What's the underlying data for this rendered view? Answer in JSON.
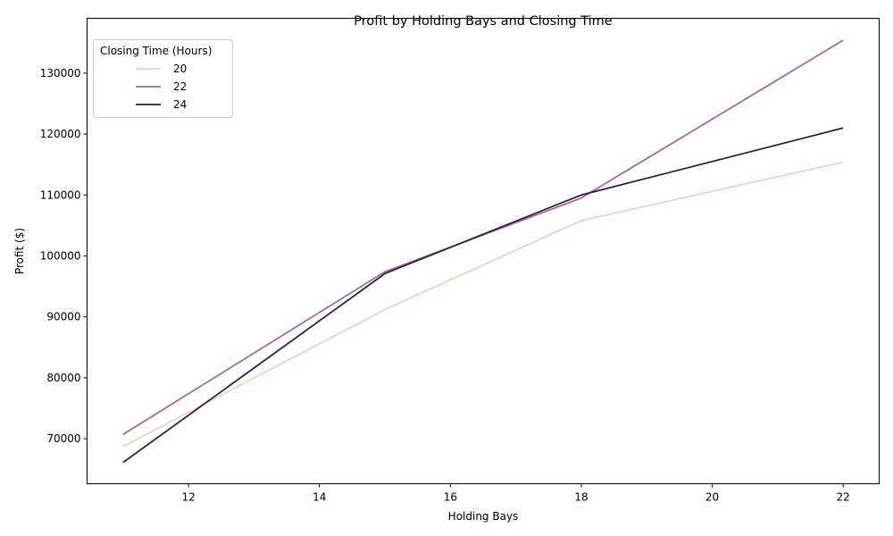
{
  "chart_data": {
    "type": "line",
    "title": "Profit by Holding Bays and Closing Time",
    "xlabel": "Holding Bays",
    "ylabel": "Profit ($)",
    "xlim": [
      10.45,
      22.55
    ],
    "ylim": [
      62600,
      139000
    ],
    "xticks": [
      12,
      14,
      16,
      18,
      20,
      22
    ],
    "yticks": [
      70000,
      80000,
      90000,
      100000,
      110000,
      120000,
      130000
    ],
    "grid": false,
    "legend": {
      "title": "Closing Time (Hours)",
      "placement": "top-left"
    },
    "series": [
      {
        "name": "20",
        "color": "#ebd0cc",
        "x": [
          11,
          15,
          18,
          22
        ],
        "y": [
          68700,
          91200,
          105800,
          115400
        ]
      },
      {
        "name": "22",
        "color": "#a6678f",
        "x": [
          11,
          15,
          18,
          22
        ],
        "y": [
          70700,
          97400,
          109500,
          135400
        ]
      },
      {
        "name": "24",
        "color": "#2a1d43",
        "x": [
          11,
          15,
          18,
          22
        ],
        "y": [
          66100,
          97100,
          110000,
          121000
        ]
      }
    ]
  }
}
